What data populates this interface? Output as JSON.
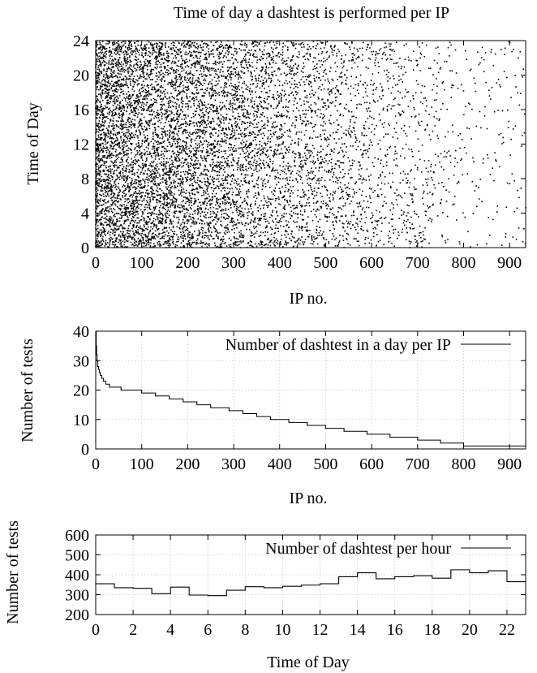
{
  "chart_data": [
    {
      "type": "scatter",
      "title": "Time of day a dashtest is performed per IP",
      "xlabel": "IP no.",
      "ylabel": "Time of Day",
      "xlim": [
        0,
        935
      ],
      "ylim": [
        0,
        24
      ],
      "xticks": [
        0,
        100,
        200,
        300,
        400,
        500,
        600,
        700,
        800,
        900
      ],
      "yticks": [
        0,
        4,
        8,
        12,
        16,
        20,
        24
      ],
      "grid": false,
      "legend": "none",
      "point_color": "#000000",
      "points_description": "Dense uniform-in-time scatter of ~11000 test events; density decreases with IP no. following the per-IP test count curve",
      "density_by_ip": {
        "x": [
          0,
          5,
          10,
          20,
          50,
          100,
          200,
          300,
          400,
          500,
          600,
          700,
          800,
          900,
          935
        ],
        "tests_per_ip": [
          40,
          28,
          25,
          23,
          21,
          19,
          16,
          13,
          9,
          7,
          4,
          3,
          1,
          1,
          1
        ]
      }
    },
    {
      "type": "line",
      "step": true,
      "xlabel": "IP no.",
      "ylabel": "Number of tests",
      "xlim": [
        0,
        935
      ],
      "ylim": [
        0,
        40
      ],
      "xticks": [
        0,
        100,
        200,
        300,
        400,
        500,
        600,
        700,
        800,
        900
      ],
      "yticks": [
        0,
        10,
        20,
        30,
        40
      ],
      "grid": true,
      "legend": "top-right",
      "series": [
        {
          "name": "Number of dashtest in a day per IP",
          "x": [
            0,
            1,
            2,
            3,
            4,
            6,
            8,
            10,
            13,
            17,
            22,
            30,
            40,
            55,
            75,
            100,
            130,
            160,
            190,
            220,
            250,
            290,
            320,
            350,
            380,
            420,
            460,
            500,
            540,
            590,
            640,
            700,
            750,
            800,
            935
          ],
          "y": [
            40,
            35,
            32,
            30,
            28,
            27,
            26,
            25,
            24,
            23,
            22,
            21,
            21,
            20,
            20,
            19,
            18,
            17,
            16,
            15,
            14,
            13,
            12,
            11,
            10,
            9,
            8,
            7,
            6,
            5,
            4,
            3,
            2,
            1,
            1
          ]
        }
      ]
    },
    {
      "type": "line",
      "step": true,
      "xlabel": "Time of Day",
      "ylabel": "Number of tests",
      "xlim": [
        0,
        23
      ],
      "ylim": [
        200,
        600
      ],
      "xticks": [
        0,
        2,
        4,
        6,
        8,
        10,
        12,
        14,
        16,
        18,
        20,
        22
      ],
      "yticks": [
        200,
        300,
        400,
        500,
        600
      ],
      "grid": true,
      "legend": "top-right",
      "series": [
        {
          "name": "Number of dashtest per hour",
          "x": [
            0,
            1,
            2,
            3,
            4,
            5,
            6,
            7,
            8,
            9,
            10,
            11,
            12,
            13,
            14,
            15,
            16,
            17,
            18,
            19,
            20,
            21,
            22
          ],
          "y": [
            355,
            335,
            332,
            305,
            338,
            298,
            295,
            322,
            340,
            335,
            342,
            348,
            355,
            390,
            410,
            380,
            390,
            395,
            383,
            425,
            410,
            420,
            365
          ]
        }
      ]
    }
  ]
}
